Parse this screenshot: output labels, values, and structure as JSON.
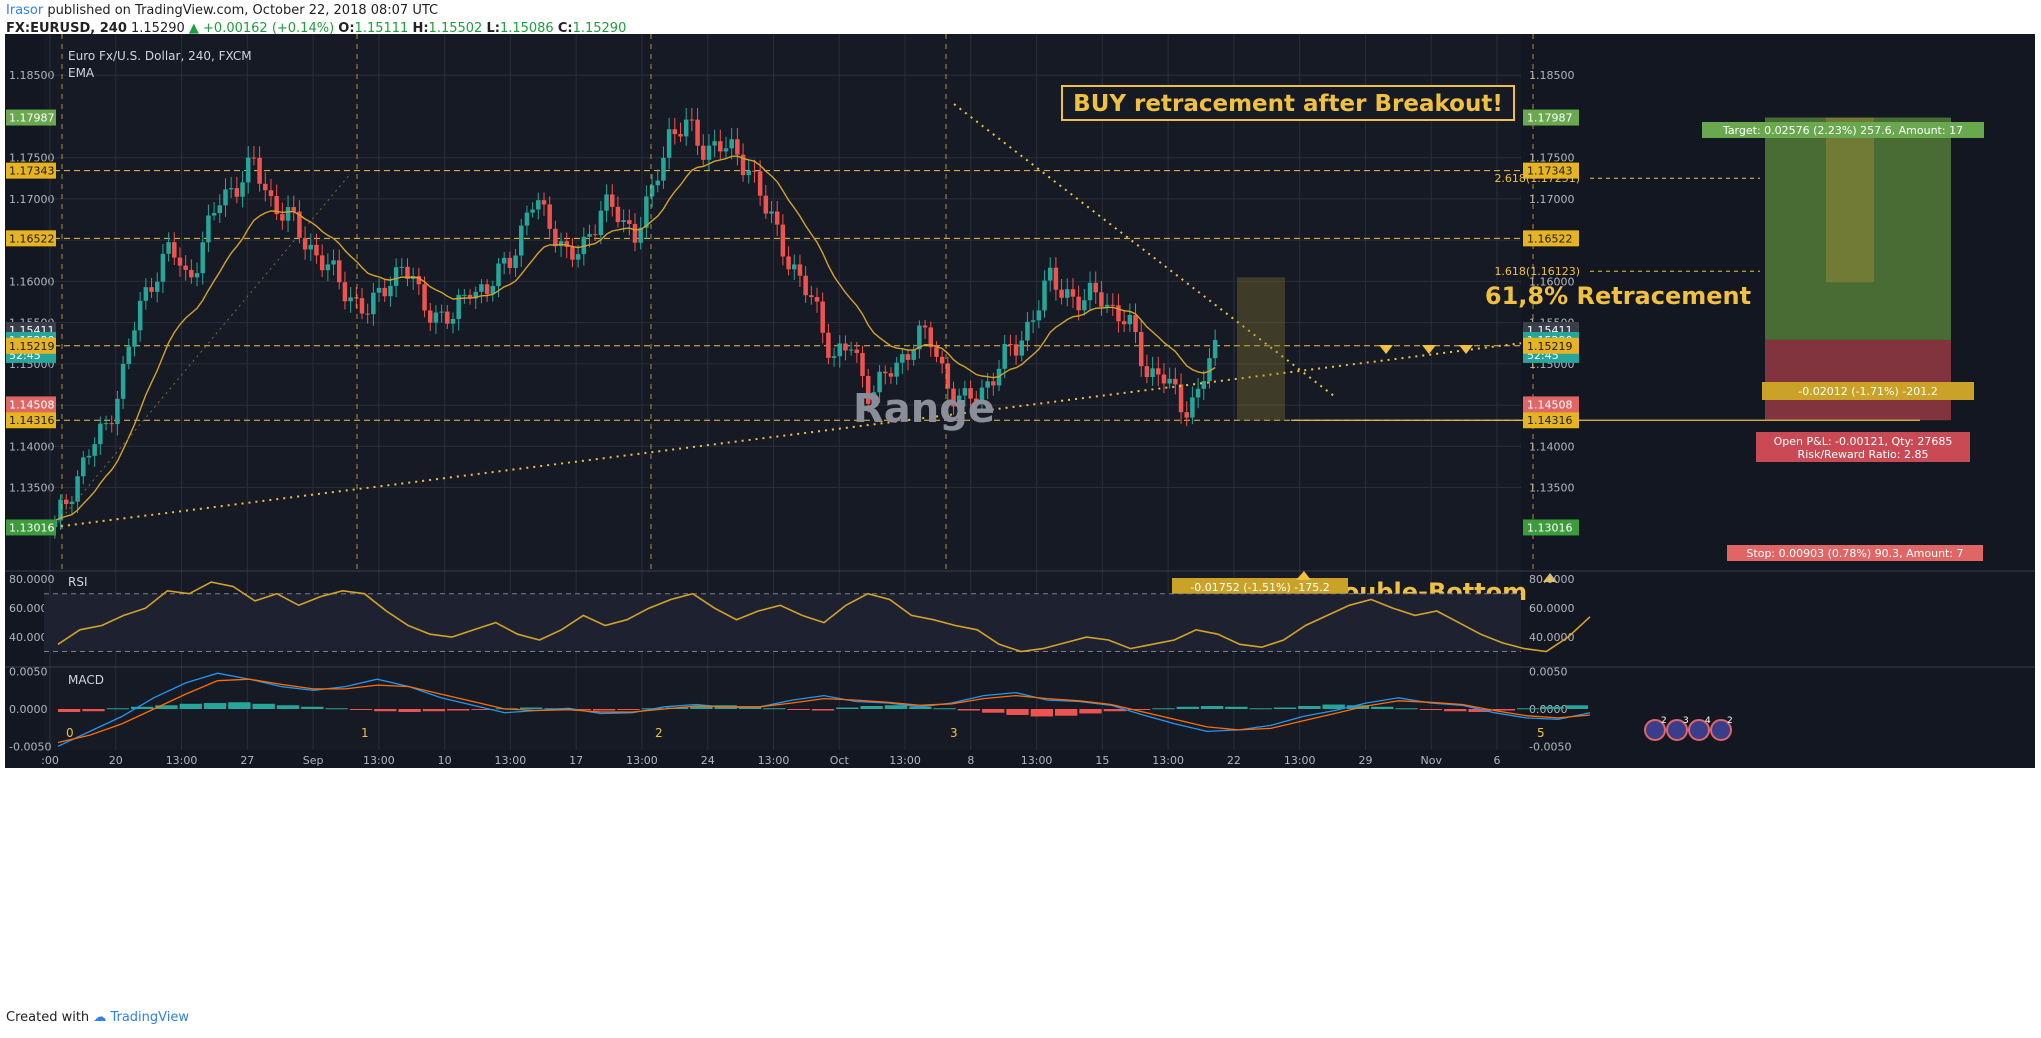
{
  "header": {
    "author": "Irasor",
    "published": "published on TradingView.com, October 22, 2018 08:07 UTC",
    "symbol": "FX:EURUSD, 240",
    "last": "1.15290",
    "change": "▲ +0.00162 (+0.14%)",
    "o_label": "O:",
    "o_val": "1.15111",
    "h_label": "H:",
    "h_val": "1.15502",
    "l_label": "L:",
    "l_val": "1.15086",
    "c_label": "C:",
    "c_val": "1.15290"
  },
  "footer": {
    "created": "Created with",
    "brand": "TradingView"
  },
  "colors": {
    "bg": "#131722",
    "grid": "#2a2e39",
    "up": "#26a69a",
    "down": "#ef5350",
    "ema": "#d4a22a",
    "annot": "#f0c040",
    "target": "#5b8a3a",
    "stop": "#b0404a",
    "axis_text": "#b2b5be"
  },
  "chart_data": [
    {
      "type": "candlestick",
      "title": "Euro Fx/U.S. Dollar, 240, FXCM",
      "indicator": "EMA",
      "ylim": [
        1.125,
        1.19
      ],
      "y_ticks": [
        "1.18500",
        "1.17500",
        "1.17000",
        "1.16500",
        "1.16000",
        "1.15500",
        "1.15000",
        "1.14500",
        "1.14000",
        "1.13500"
      ],
      "x_ticks": [
        ":00",
        "20",
        "13:00",
        "27",
        "Sep",
        "13:00",
        "10",
        "13:00",
        "17",
        "13:00",
        "24",
        "13:00",
        "Oct",
        "13:00",
        "8",
        "13:00",
        "15",
        "13:00",
        "22",
        "13:00",
        "29",
        "Nov",
        "6"
      ],
      "price_levels": [
        {
          "label": "1.17987",
          "kind": "target"
        },
        {
          "label": "1.17343",
          "kind": "level"
        },
        {
          "label": "1.16522",
          "kind": "level"
        },
        {
          "label": "1.15411",
          "kind": "plain"
        },
        {
          "label": "1.15290",
          "kind": "last"
        },
        {
          "label": "52:45",
          "kind": "countdown"
        },
        {
          "label": "1.15219",
          "kind": "level"
        },
        {
          "label": "1.14508",
          "kind": "stop"
        },
        {
          "label": "1.14316",
          "kind": "level"
        },
        {
          "label": "1.13016",
          "kind": "base"
        }
      ],
      "levels": [
        1.17343,
        1.16522,
        1.15219,
        1.14316
      ],
      "last_price": 1.1529,
      "close_path": [
        1.1302,
        1.135,
        1.139,
        1.142,
        1.148,
        1.156,
        1.161,
        1.164,
        1.16,
        1.165,
        1.17,
        1.172,
        1.174,
        1.17,
        1.168,
        1.165,
        1.163,
        1.16,
        1.158,
        1.156,
        1.16,
        1.162,
        1.158,
        1.156,
        1.155,
        1.16,
        1.158,
        1.162,
        1.165,
        1.17,
        1.167,
        1.162,
        1.165,
        1.169,
        1.168,
        1.166,
        1.17,
        1.178,
        1.179,
        1.176,
        1.177,
        1.175,
        1.174,
        1.168,
        1.164,
        1.16,
        1.156,
        1.151,
        1.152,
        1.147,
        1.148,
        1.15,
        1.154,
        1.152,
        1.147,
        1.145,
        1.147,
        1.15,
        1.152,
        1.156,
        1.16,
        1.159,
        1.157,
        1.159,
        1.156,
        1.154,
        1.149,
        1.148,
        1.145,
        1.146,
        1.1529
      ],
      "fib_labels": [
        "2.618(1.17251)",
        "1.618(1.16123)"
      ],
      "wave_labels": [
        "0",
        "1",
        "2",
        "3",
        "5"
      ],
      "annotations": {
        "headline": "BUY retracement after Breakout!",
        "retracement": "61,8% Retracement",
        "range": "Range",
        "double_bottom": "Double-Bottom",
        "target_box": "Target: 0.02576 (2.23%) 257.6, Amount: 17",
        "retr_measure": "-0.02012 (-1.71%) -201.2",
        "pnl": "Open P&L: -0.00121, Qty: 27685",
        "rr": "Risk/Reward Ratio: 2.85",
        "stop_box": "Stop: 0.00903 (0.78%) 90.3, Amount: 7",
        "range_measure": "-0.01752 (-1.51%) -175.2"
      },
      "event_badges": [
        "2",
        "3",
        "4",
        "2"
      ]
    },
    {
      "type": "line",
      "title": "RSI",
      "ylim": [
        20,
        85
      ],
      "y_ticks": [
        "80.0000",
        "60.0000",
        "40.0000"
      ],
      "bands": [
        70,
        30
      ],
      "values": [
        35,
        45,
        48,
        55,
        60,
        72,
        70,
        78,
        75,
        65,
        70,
        62,
        68,
        72,
        70,
        58,
        48,
        42,
        40,
        45,
        50,
        42,
        38,
        45,
        55,
        48,
        52,
        60,
        66,
        70,
        60,
        52,
        58,
        62,
        55,
        50,
        62,
        70,
        66,
        55,
        52,
        48,
        45,
        35,
        30,
        32,
        36,
        40,
        38,
        32,
        35,
        38,
        45,
        42,
        35,
        33,
        38,
        48,
        55,
        62,
        66,
        60,
        55,
        58,
        50,
        42,
        36,
        32,
        30,
        40,
        54
      ]
    },
    {
      "type": "bar",
      "title": "MACD",
      "ylim": [
        -0.0055,
        0.0055
      ],
      "y_ticks": [
        "0.0050",
        "0.0000",
        "-0.0050"
      ],
      "histogram": [
        -0.0004,
        -0.0003,
        0.0001,
        0.0003,
        0.0005,
        0.0007,
        0.0008,
        0.0009,
        0.0007,
        0.0005,
        0.0003,
        0.0001,
        -0.0001,
        -0.0003,
        -0.0004,
        -0.0003,
        -0.0002,
        -0.0001,
        0.0001,
        0.0002,
        0.0001,
        -0.0001,
        -0.0002,
        -0.0001,
        0.0001,
        0.0002,
        0.0004,
        0.0005,
        0.0003,
        0.0001,
        -0.0001,
        -0.0002,
        0.0002,
        0.0004,
        0.0005,
        0.0003,
        0.0001,
        -0.0002,
        -0.0005,
        -0.0008,
        -0.001,
        -0.0009,
        -0.0006,
        -0.0003,
        -0.0001,
        0.0001,
        0.0003,
        0.0004,
        0.0003,
        0.0001,
        0.0002,
        0.0004,
        0.0006,
        0.0005,
        0.0003,
        0.0001,
        -0.0001,
        -0.0003,
        -0.0004,
        -0.0002,
        0.0001,
        0.0003,
        0.0005
      ],
      "macd_line": [
        -0.005,
        -0.003,
        -0.001,
        0.0015,
        0.0035,
        0.0048,
        0.004,
        0.003,
        0.0025,
        0.003,
        0.004,
        0.003,
        0.0015,
        0.0005,
        -0.0005,
        -0.0002,
        0.0001,
        -0.0006,
        -0.0005,
        0.0003,
        0.0006,
        0.0002,
        0.0003,
        0.0012,
        0.0018,
        0.001,
        0.0008,
        0.0003,
        0.0008,
        0.0018,
        0.0022,
        0.0012,
        0.001,
        0.0005,
        -0.0008,
        -0.002,
        -0.003,
        -0.0028,
        -0.0022,
        -0.001,
        -0.0002,
        0.0008,
        0.0015,
        0.0008,
        0.0005,
        -0.0005,
        -0.0012,
        -0.0014,
        -0.0005
      ],
      "signal_line": [
        -0.0045,
        -0.0035,
        -0.002,
        0.0,
        0.002,
        0.0038,
        0.004,
        0.0033,
        0.0027,
        0.0027,
        0.0032,
        0.003,
        0.002,
        0.001,
        0.0,
        -0.0002,
        -0.0001,
        -0.0004,
        -0.0004,
        0.0,
        0.0004,
        0.0003,
        0.0003,
        0.0008,
        0.0014,
        0.0012,
        0.0009,
        0.0005,
        0.0007,
        0.0014,
        0.0018,
        0.0014,
        0.0011,
        0.0006,
        -0.0004,
        -0.0014,
        -0.0024,
        -0.0028,
        -0.0026,
        -0.0016,
        -0.0006,
        0.0004,
        0.0011,
        0.0009,
        0.0006,
        -0.0002,
        -0.0009,
        -0.0012,
        -0.0008
      ]
    }
  ]
}
